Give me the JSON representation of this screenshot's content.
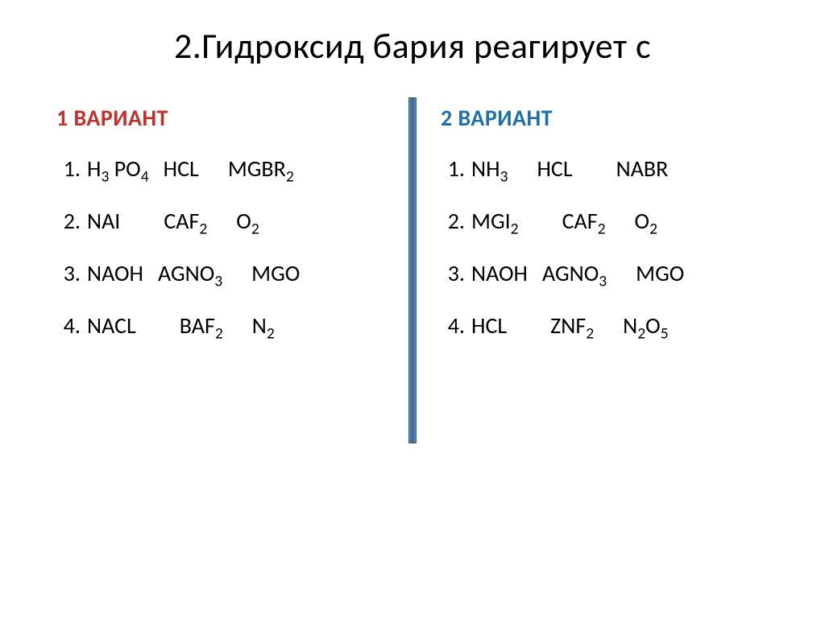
{
  "title": "2.Гидроксид бария реагирует с",
  "variant1": {
    "label": "1 вариант",
    "color": "#c0302c",
    "rows": [
      {
        "n": "1.",
        "a": "H<sub>3</sub> PO<sub>4</sub>",
        "b": "HCl",
        "c": "MgBr<sub>2</sub>",
        "g1": "sp1",
        "g2": "sp2"
      },
      {
        "n": "2.",
        "a": "NaI",
        "b": "CaF<sub>2</sub>",
        "c": "O<sub>2</sub>",
        "g1": "sp3",
        "g2": "sp2"
      },
      {
        "n": "3.",
        "a": "NaOH",
        "b": "AgNO<sub>3</sub>",
        "c": "MgO",
        "g1": "sp1",
        "g2": "sp2"
      },
      {
        "n": "4.",
        "a": "NaCl",
        "b": "BaF<sub>2</sub>",
        "c": "N<sub>2</sub>",
        "g1": "sp3",
        "g2": "sp2"
      }
    ]
  },
  "variant2": {
    "label": "2 вариант",
    "color": "#1f6fa8",
    "rows": [
      {
        "n": "1.",
        "a": "NH<sub>3</sub>",
        "b": "HCl",
        "c": "NaBr",
        "g1": "sp2",
        "g2": "sp3"
      },
      {
        "n": "2.",
        "a": "MgI<sub>2</sub>",
        "b": "CaF<sub>2</sub>",
        "c": "O<sub>2</sub>",
        "g1": "sp3",
        "g2": "sp2"
      },
      {
        "n": "3.",
        "a": "NaOH",
        "b": "AgNO<sub>3</sub>",
        "c": "MgO",
        "g1": "sp1",
        "g2": "sp2"
      },
      {
        "n": "4.",
        "a": "HCl",
        "b": "ZnF<sub>2</sub>",
        "c": "N<sub>2</sub>O<sub>5</sub>",
        "g1": "sp3",
        "g2": "sp2"
      }
    ]
  },
  "style": {
    "background": "#ffffff",
    "title_fontsize": 44,
    "body_fontsize": 28,
    "variant_fontsize": 28,
    "divider_gradient": [
      "#6b8fb5",
      "#3d6a9a"
    ],
    "text_color": "#000000"
  }
}
